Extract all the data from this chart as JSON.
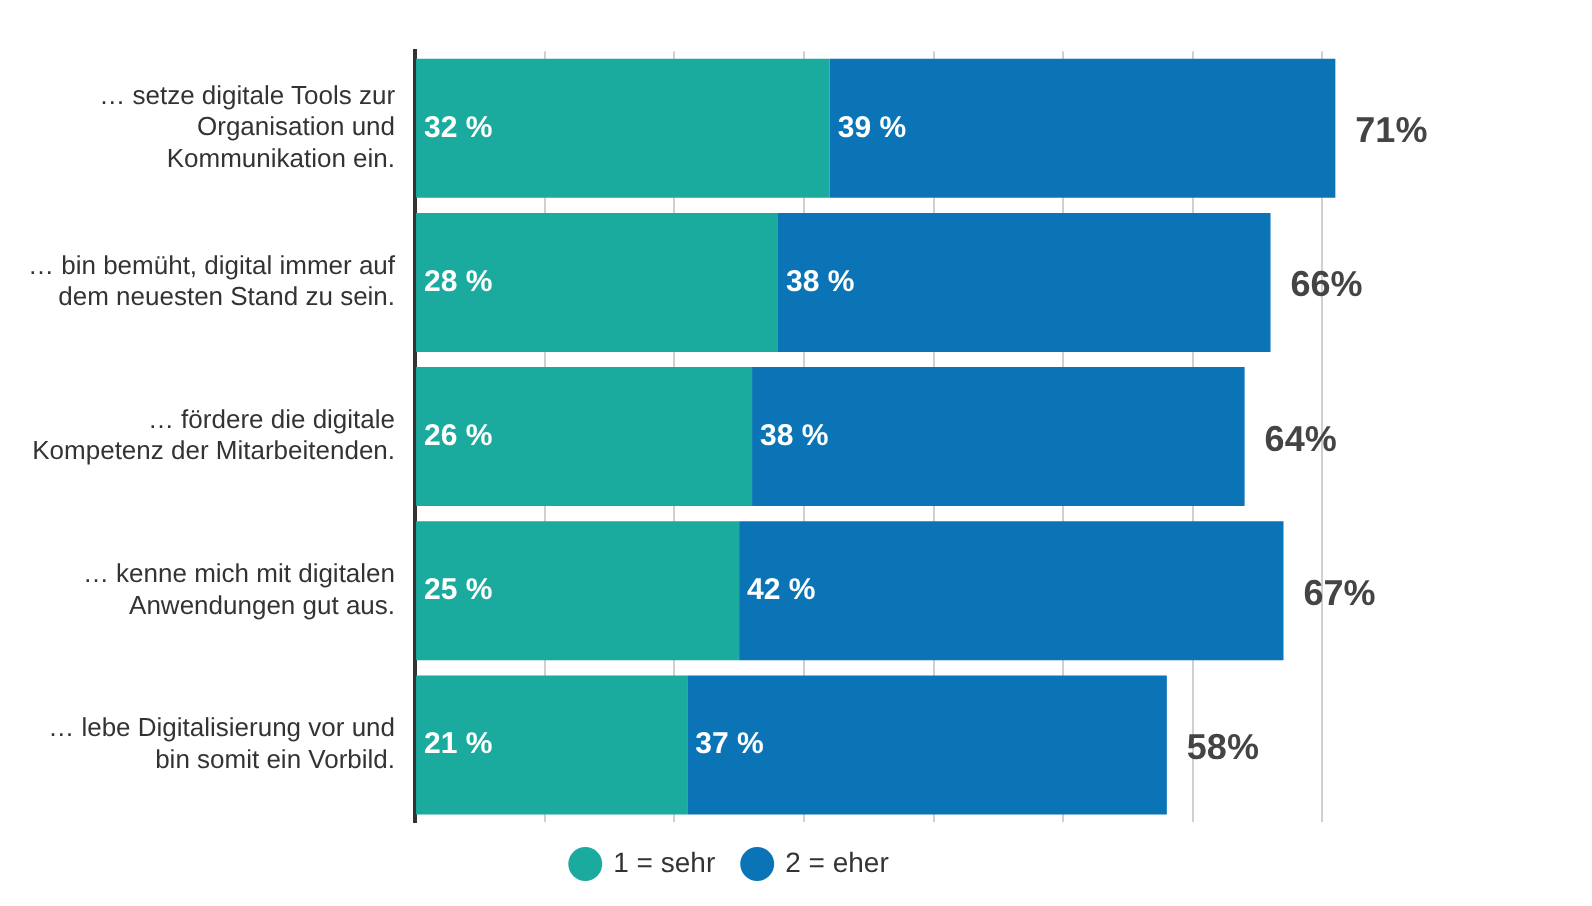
{
  "chart_data": {
    "type": "bar",
    "orientation": "horizontal",
    "stacked": true,
    "categories": [
      "… setze digitale Tools zur\nOrganisation und\nKommunikation ein.",
      "… bin bemüht, digital immer auf\ndem neuesten Stand zu sein.",
      "… fördere die digitale\nKompetenz der Mitarbeitenden.",
      "… kenne mich mit digitalen\nAnwendungen gut aus.",
      "… lebe Digitalisierung vor und\nbin somit ein Vorbild."
    ],
    "series": [
      {
        "name": "1 = sehr",
        "color": "#1aaa9e",
        "values": [
          32,
          28,
          26,
          25,
          21
        ],
        "value_labels": [
          "32 %",
          "28 %",
          "26 %",
          "25 %",
          "21 %"
        ]
      },
      {
        "name": "2 = eher",
        "color": "#0b74b6",
        "values": [
          39,
          38,
          38,
          42,
          37
        ],
        "value_labels": [
          "39 %",
          "38 %",
          "38 %",
          "42 %",
          "37 %"
        ]
      }
    ],
    "totals": [
      "71%",
      "66%",
      "64%",
      "67%",
      "58%"
    ],
    "xticks": [
      {
        "value": 0,
        "label": null
      },
      {
        "value": 10,
        "label": null
      },
      {
        "value": 20,
        "label": null
      },
      {
        "value": 30,
        "label": null
      },
      {
        "value": 40,
        "label": null
      },
      {
        "value": 50,
        "label": null
      },
      {
        "value": 60,
        "label": null
      },
      {
        "value": 70,
        "label": null
      }
    ],
    "tick_labels": "y",
    "grid": "x",
    "legend": "bottom"
  }
}
